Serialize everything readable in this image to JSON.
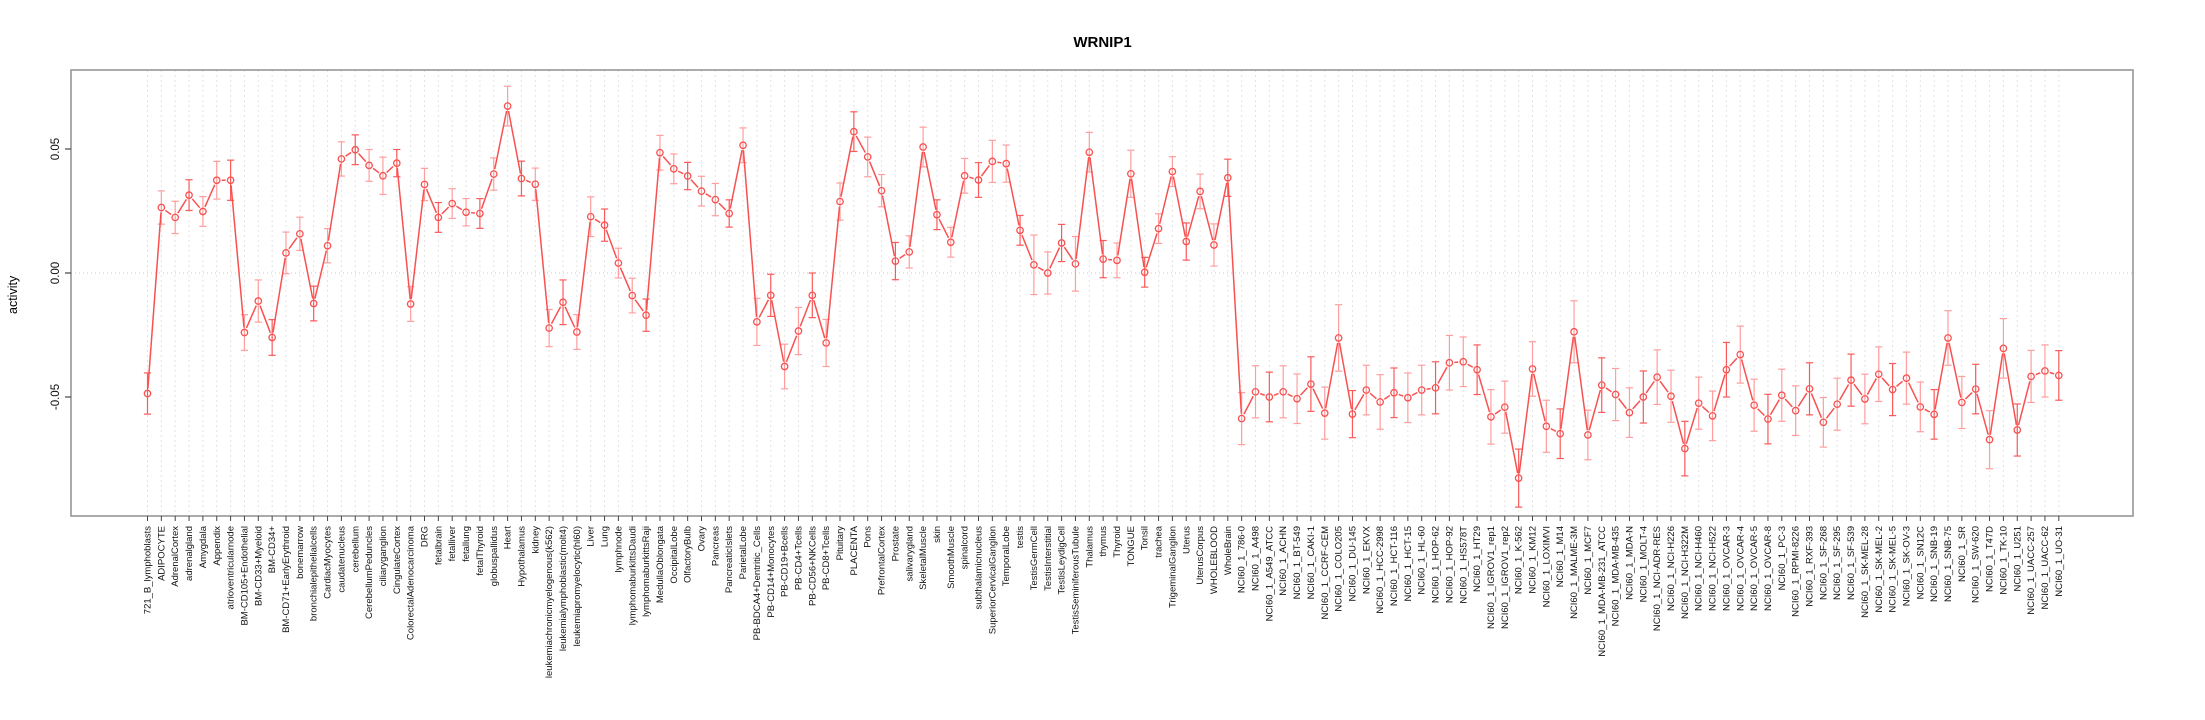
{
  "chart_data": {
    "type": "line",
    "title": "WRNIP1",
    "ylabel": "activity",
    "xlabel": "",
    "legend": null,
    "grid": {
      "vertical_per_category": true,
      "horizontal_zero_line": true
    },
    "ylim": [
      -0.098,
      0.082
    ],
    "yticks": {
      "values": [
        0.05,
        0.0,
        -0.05
      ],
      "labels": [
        "0.05",
        "0.00",
        "-0.05"
      ]
    },
    "point_style": "open-circle-with-error-bars",
    "colors": {
      "series": "#f85151",
      "errorbar_light": "#ff9e9e",
      "errorbar_strong": "#fb5a5a",
      "grid": "#e3e3e3",
      "zero_line": "#c8c8c8",
      "box": "#8f8f8f",
      "tick": "#444444",
      "label_text": "#111111"
    },
    "categories": [
      "721_B_lymphoblasts",
      "ADIPOCYTE",
      "AdrenalCortex",
      "adrenalgland",
      "Amygdala",
      "Appendix",
      "atrioventricularnode",
      "BM-CD105+Endothelial",
      "BM-CD33+Myeloid",
      "BM-CD34+",
      "BM-CD71+EarlyErythroid",
      "bonemarrow",
      "bronchialepithelialcells",
      "CardiacMyocytes",
      "caudatenucleus",
      "cerebellum",
      "CerebellumPeduncles",
      "ciliaryganglion",
      "CingulateCortex",
      "ColorectalAdenocarcinoma",
      "DRG",
      "fetalbrain",
      "fetalliver",
      "fetallung",
      "fetalThyroid",
      "globuspallidus",
      "Heart",
      "Hypothalamus",
      "kidney",
      "leukemiachronicmyelogenous(k562)",
      "leukemialymphoblastic(molt4)",
      "leukemiapromyelocytic(hl60)",
      "Liver",
      "Lung",
      "lymphnode",
      "lymphomaburkittsDaudi",
      "lymphomaburkittsRaji",
      "MedullaOblongata",
      "OccipitalLobe",
      "OlfactoryBulb",
      "Ovary",
      "Pancreas",
      "PancreaticIslets",
      "ParietalLobe",
      "PB-BDCA4+Dentritic_Cells",
      "PB-CD14+Monocytes",
      "PB-CD19+Bcells",
      "PB-CD4+Tcells",
      "PB-CD56+NKCells",
      "PB-CD8+Tcells",
      "Pituitary",
      "PLACENTA",
      "Pons",
      "PrefrontalCortex",
      "Prostate",
      "salivarygland",
      "SkeletalMuscle",
      "skin",
      "SmoothMuscle",
      "spinalcord",
      "subthalamicnucleus",
      "SuperiorCervicalGanglion",
      "TemporalLobe",
      "testis",
      "TestisGermCell",
      "TestisInterstitial",
      "TestisLeydigCell",
      "TestisSeminiferousTubule",
      "Thalamus",
      "thymus",
      "Thyroid",
      "TONGUE",
      "Tonsil",
      "trachea",
      "TrigeminalGanglion",
      "Uterus",
      "UterusCorpus",
      "WHOLEBLOOD",
      "WholeBrain",
      "NCI60_1_786-0",
      "NCI60_1_A498",
      "NCI60_1_A549_ATCC",
      "NCI60_1_ACHN",
      "NCI60_1_BT-549",
      "NCI60_1_CAKI-1",
      "NCI60_1_CCRF-CEM",
      "NCI60_1_COLO205",
      "NCI60_1_DU-145",
      "NCI60_1_EKVX",
      "NCI60_1_HCC-2998",
      "NCI60_1_HCT-116",
      "NCI60_1_HCT-15",
      "NCI60_1_HL-60",
      "NCI60_1_HOP-62",
      "NCI60_1_HOP-92",
      "NCI60_1_HS578T",
      "NCI60_1_HT29",
      "NCI60_1_IGROV1_rep1",
      "NCI60_1_IGROV1_rep2",
      "NCI60_1_K-562",
      "NCI60_1_KM12",
      "NCI60_1_LOXIMVI",
      "NCI60_1_M14",
      "NCI60_1_MALME-3M",
      "NCI60_1_MCF7",
      "NCI60_1_MDA-MB-231_ATCC",
      "NCI60_1_MDA-MB-435",
      "NCI60_1_MDA-N",
      "NCI60_1_MOLT-4",
      "NCI60_1_NCI-ADR-RES",
      "NCI60_1_NCI-H226",
      "NCI60_1_NCI-H322M",
      "NCI60_1_NCI-H460",
      "NCI60_1_NCI-H522",
      "NCI60_1_OVCAR-3",
      "NCI60_1_OVCAR-4",
      "NCI60_1_OVCAR-5",
      "NCI60_1_OVCAR-8",
      "NCI60_1_PC-3",
      "NCI60_1_RPMI-8226",
      "NCI60_1_RXF-393",
      "NCI60_1_SF-268",
      "NCI60_1_SF-295",
      "NCI60_1_SF-539",
      "NCI60_1_SK-MEL-28",
      "NCI60_1_SK-MEL-2",
      "NCI60_1_SK-MEL-5",
      "NCI60_1_SK-OV-3",
      "NCI60_1_SN12C",
      "NCI60_1_SNB-19",
      "NCI60_1_SNB-75",
      "NCI60_1_SR",
      "NCI60_1_SW-620",
      "NCI60_1_T47D",
      "NCI60_1_TK-10",
      "NCI60_1_U251",
      "NCI60_1_UACC-257",
      "NCI60_1_UACC-62",
      "NCI60_1_UO-31"
    ],
    "values": [
      -0.0486,
      0.0264,
      0.0224,
      0.0314,
      0.0248,
      0.0374,
      0.0374,
      -0.024,
      -0.0113,
      -0.026,
      0.0081,
      0.0158,
      -0.0123,
      0.011,
      0.046,
      0.0497,
      0.0434,
      0.0392,
      0.0443,
      -0.0125,
      0.0357,
      0.0224,
      0.028,
      0.0245,
      0.024,
      0.0399,
      0.0673,
      0.0381,
      0.0358,
      -0.0222,
      -0.0118,
      -0.0238,
      0.0227,
      0.0193,
      0.004,
      -0.0091,
      -0.017,
      0.0485,
      0.042,
      0.0391,
      0.033,
      0.0296,
      0.024,
      0.0515,
      -0.0197,
      -0.009,
      -0.0377,
      -0.0234,
      -0.009,
      -0.0282,
      0.0288,
      0.057,
      0.0468,
      0.0332,
      0.0048,
      0.0085,
      0.0508,
      0.0235,
      0.0124,
      0.0392,
      0.0375,
      0.045,
      0.0441,
      0.0172,
      0.0033,
      0.0,
      0.0121,
      0.0037,
      0.0487,
      0.0056,
      0.0051,
      0.04,
      0.0003,
      0.0179,
      0.0409,
      0.0127,
      0.0329,
      0.0113,
      0.0384,
      -0.0587,
      -0.0479,
      -0.05,
      -0.0479,
      -0.0507,
      -0.0448,
      -0.0565,
      -0.0262,
      -0.0569,
      -0.0472,
      -0.052,
      -0.0483,
      -0.0503,
      -0.0472,
      -0.0463,
      -0.0362,
      -0.0358,
      -0.039,
      -0.058,
      -0.0541,
      -0.0827,
      -0.0387,
      -0.0618,
      -0.0648,
      -0.0237,
      -0.0653,
      -0.0452,
      -0.049,
      -0.0563,
      -0.05,
      -0.042,
      -0.0497,
      -0.0708,
      -0.0525,
      -0.0576,
      -0.039,
      -0.0329,
      -0.0533,
      -0.0589,
      -0.0493,
      -0.0555,
      -0.0467,
      -0.0602,
      -0.0529,
      -0.0432,
      -0.0508,
      -0.0408,
      -0.047,
      -0.0424,
      -0.054,
      -0.057,
      -0.0262,
      -0.0522,
      -0.0468,
      -0.0672,
      -0.0304,
      -0.0633,
      -0.0417,
      -0.0395,
      -0.0413
    ],
    "errors": [
      0.0083,
      0.0067,
      0.0065,
      0.0062,
      0.006,
      0.0076,
      0.0081,
      0.0072,
      0.0085,
      0.0072,
      0.0084,
      0.0067,
      0.007,
      0.0069,
      0.0069,
      0.006,
      0.0064,
      0.0075,
      0.0055,
      0.007,
      0.0065,
      0.006,
      0.006,
      0.0055,
      0.006,
      0.0065,
      0.008,
      0.007,
      0.0065,
      0.0075,
      0.009,
      0.007,
      0.008,
      0.0065,
      0.006,
      0.007,
      0.0065,
      0.007,
      0.006,
      0.0055,
      0.006,
      0.0065,
      0.0055,
      0.007,
      0.0095,
      0.0085,
      0.009,
      0.0095,
      0.009,
      0.0095,
      0.0075,
      0.008,
      0.008,
      0.0065,
      0.0075,
      0.0065,
      0.008,
      0.006,
      0.006,
      0.007,
      0.007,
      0.0085,
      0.0075,
      0.006,
      0.012,
      0.0085,
      0.0075,
      0.011,
      0.008,
      0.0075,
      0.007,
      0.0095,
      0.006,
      0.006,
      0.006,
      0.0075,
      0.007,
      0.0085,
      0.0075,
      0.0105,
      0.0105,
      0.01,
      0.0105,
      0.01,
      0.011,
      0.0105,
      0.0134,
      0.0095,
      0.01,
      0.011,
      0.01,
      0.01,
      0.01,
      0.0105,
      0.011,
      0.01,
      0.01,
      0.011,
      0.0105,
      0.0117,
      0.011,
      0.0105,
      0.01,
      0.0125,
      0.01,
      0.011,
      0.0105,
      0.01,
      0.0105,
      0.011,
      0.0105,
      0.011,
      0.0105,
      0.01,
      0.011,
      0.0115,
      0.0105,
      0.01,
      0.0105,
      0.01,
      0.0105,
      0.01,
      0.0105,
      0.0105,
      0.01,
      0.011,
      0.0105,
      0.0105,
      0.01,
      0.01,
      0.011,
      0.0105,
      0.01,
      0.0117,
      0.012,
      0.0105,
      0.0105,
      0.0105,
      0.01
    ]
  }
}
